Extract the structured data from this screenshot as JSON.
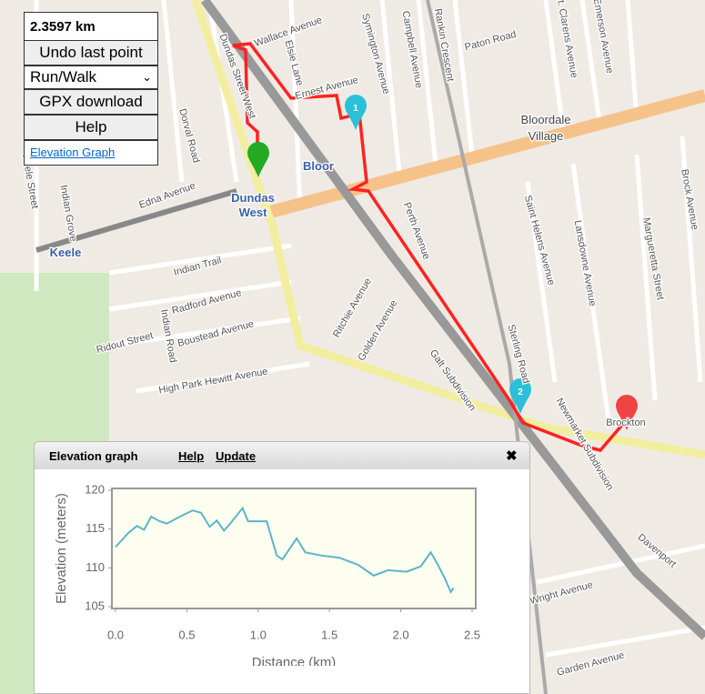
{
  "controls": {
    "distance": "2.3597 km",
    "undo": "Undo last point",
    "mode": "Run/Walk",
    "gpx": "GPX download",
    "help": "Help",
    "elevation_link": "Elevation Graph"
  },
  "map": {
    "labels": [
      "Wallace Avenue",
      "Symington Avenue",
      "Campbell Avenue",
      "Rankin Crescent",
      "Paton Road",
      "St. Clarens Avenue",
      "Emerson Avenue",
      "Dorval Road",
      "Keele Street",
      "Indian Grove",
      "Edna Avenue",
      "Bloor",
      "Dundas",
      "West",
      "Keele",
      "Bloordale",
      "Village",
      "Perth Avenue",
      "Saint Helens Avenue",
      "Lansdowne Avenue",
      "Margueretta Street",
      "Brock Avenue",
      "Indian Trail",
      "Radford Avenue",
      "Boustead Avenue",
      "Indian Road",
      "Ridout Street",
      "High Park Hewitt Avenue",
      "Ritchie Avenue",
      "Golden Avenue",
      "Galt Subdivision",
      "Sterling Road",
      "Newmarket Subdivision",
      "Brockton",
      "Davenport",
      "Wright Avenue",
      "Garden Avenue",
      "Ernest Avenue",
      "Dundas Street West",
      "Elsie Lane"
    ],
    "markers": [
      "1",
      "2"
    ]
  },
  "panel": {
    "title": "Elevation graph",
    "help": "Help",
    "update": "Update",
    "close": "✖"
  },
  "chart_data": {
    "type": "line",
    "xlabel": "Distance (km)",
    "ylabel": "Elevation (meters)",
    "x": [
      0,
      0.09,
      0.15,
      0.2,
      0.25,
      0.31,
      0.36,
      0.44,
      0.54,
      0.6,
      0.66,
      0.71,
      0.76,
      0.8,
      0.89,
      0.93,
      1.06,
      1.13,
      1.17,
      1.27,
      1.33,
      1.44,
      1.57,
      1.7,
      1.81,
      1.91,
      2.04,
      2.14,
      2.21,
      2.26,
      2.31,
      2.35,
      2.37
    ],
    "series": [
      {
        "name": "Elevation",
        "color": "#5bb5c9",
        "values": [
          112.7,
          114.5,
          115.4,
          114.9,
          116.6,
          116.0,
          115.7,
          116.5,
          117.4,
          117.1,
          115.3,
          116.1,
          114.8,
          115.6,
          117.7,
          116.0,
          116.0,
          111.6,
          111.1,
          113.8,
          112.0,
          111.6,
          111.3,
          110.4,
          109.0,
          109.7,
          109.5,
          110.2,
          112.0,
          110.4,
          108.6,
          106.9,
          107.4
        ]
      }
    ],
    "xlim": [
      0,
      2.5
    ],
    "ylim": [
      105,
      120
    ],
    "xticks": [
      {
        "value": 0,
        "label": "0.0"
      },
      0.5,
      {
        "value": 1,
        "label": "1.0"
      },
      1.5,
      {
        "value": 2,
        "label": "2.0"
      },
      2.5
    ],
    "yticks": [
      105,
      110,
      115,
      120
    ],
    "grid": false
  }
}
